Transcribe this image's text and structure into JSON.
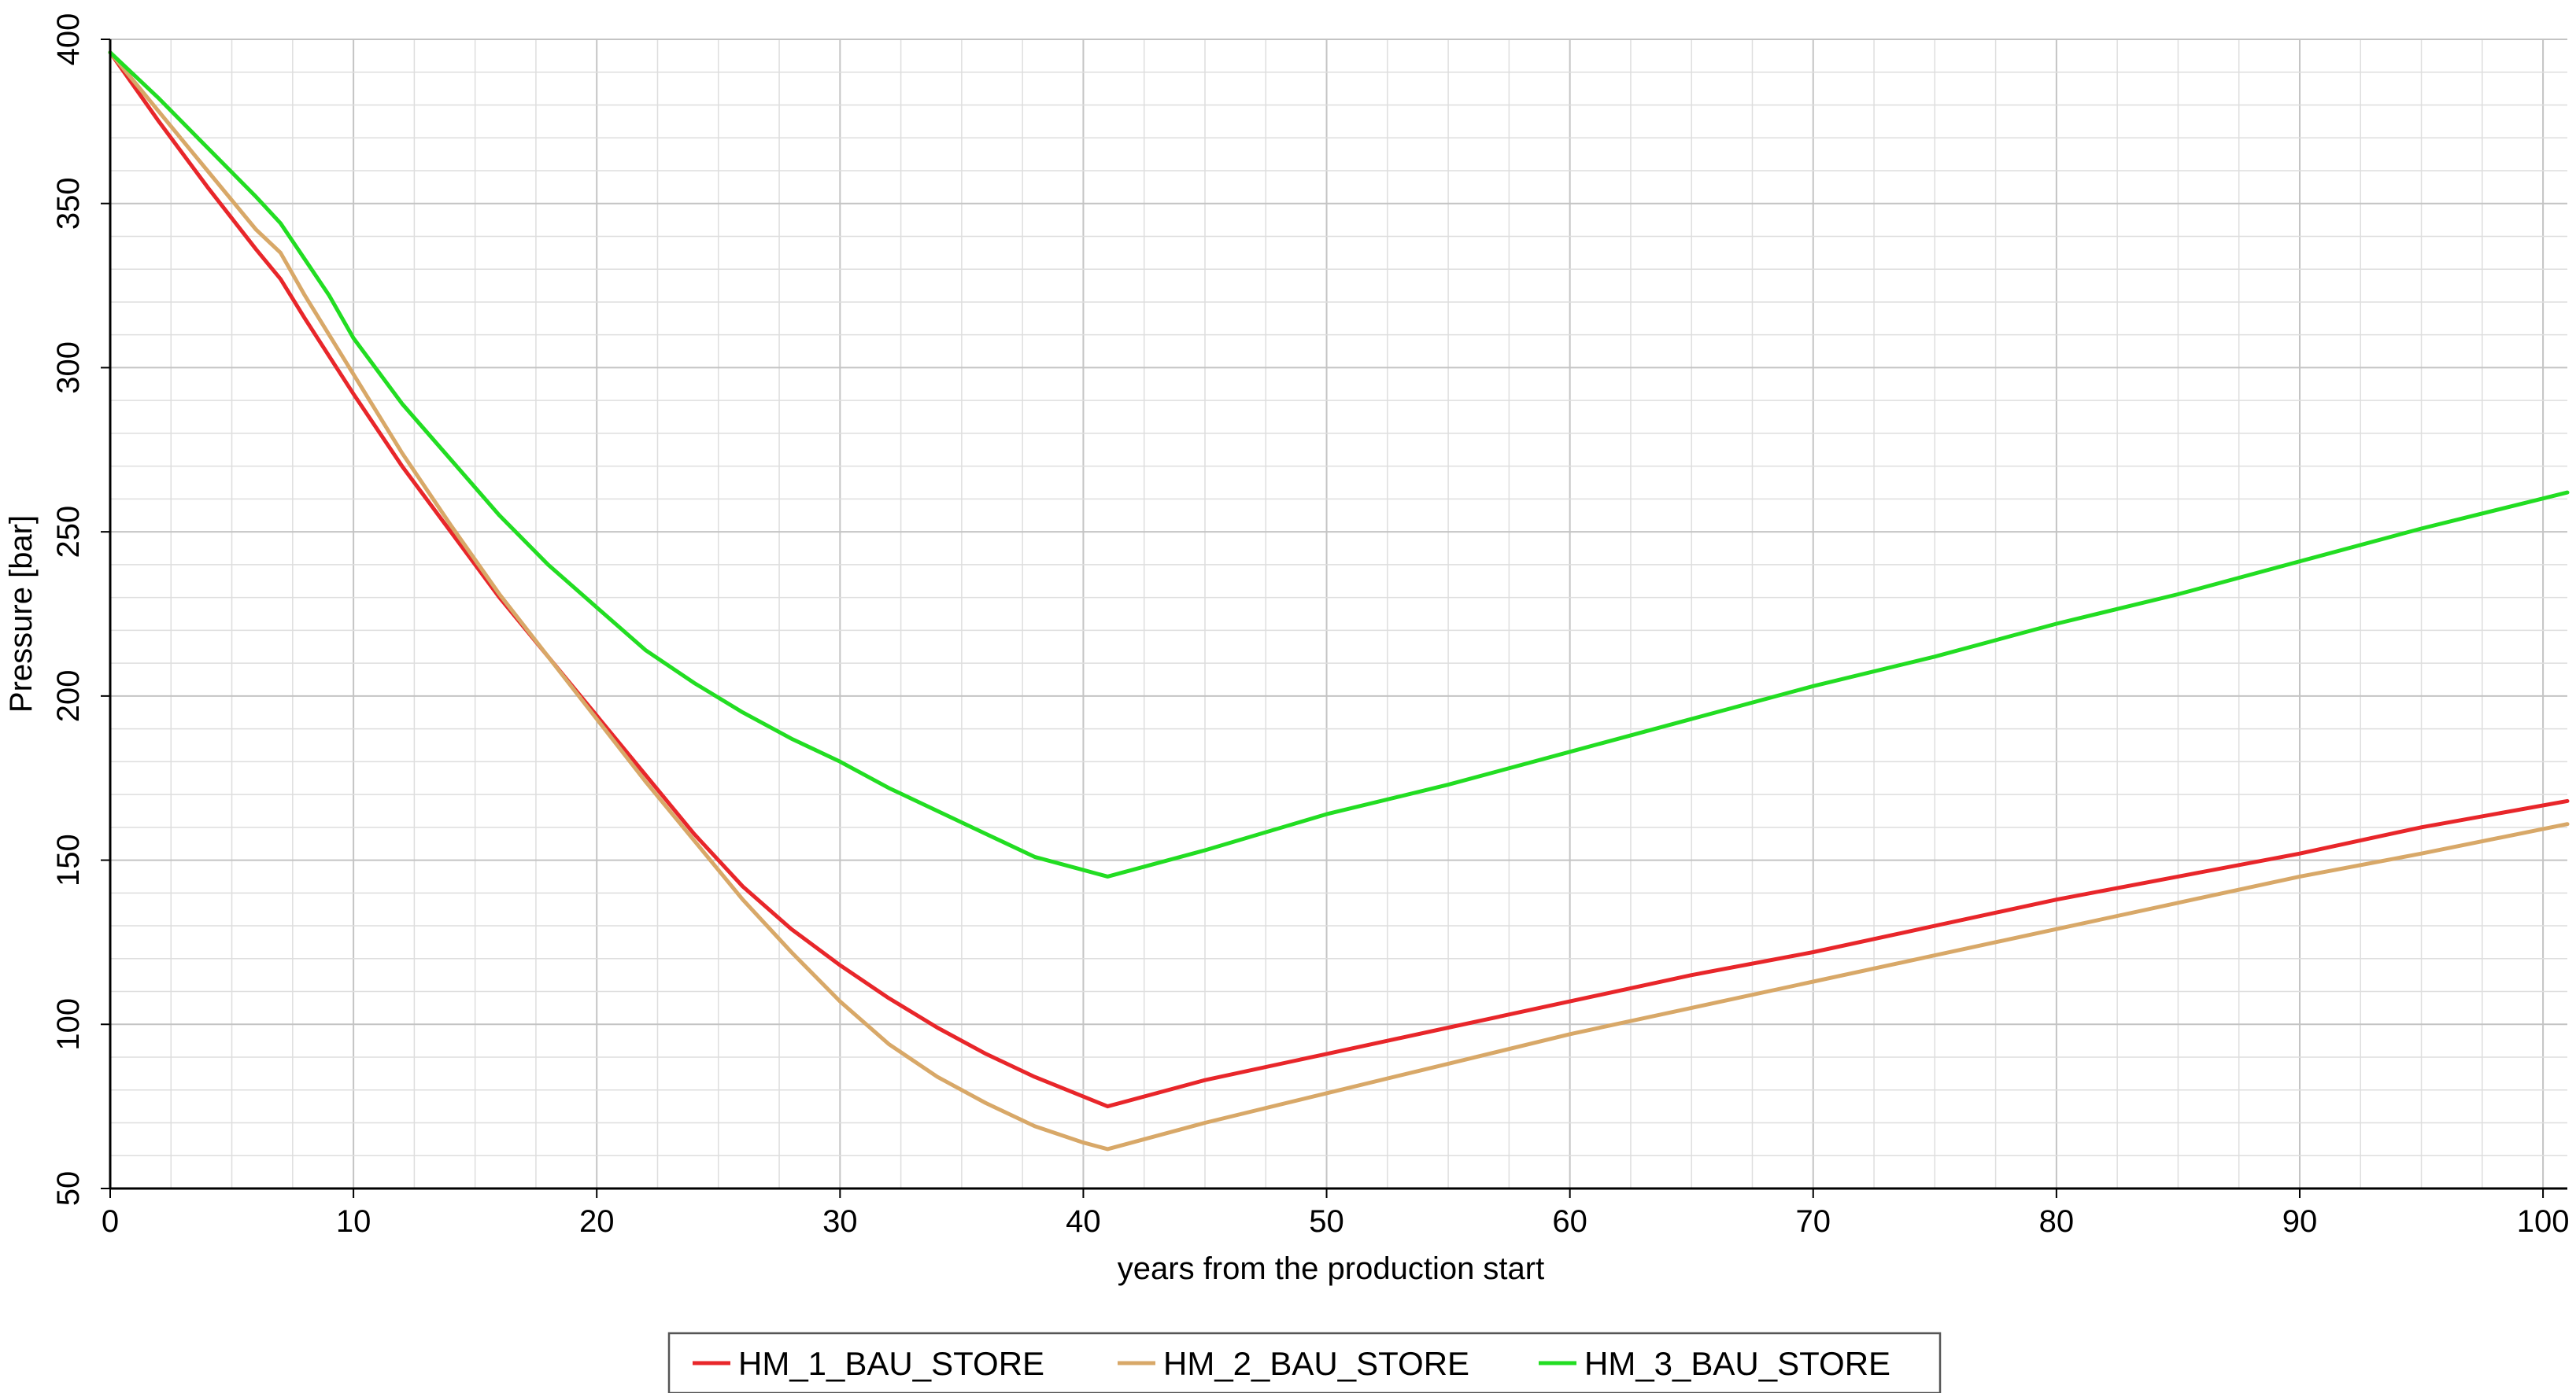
{
  "chart_data": {
    "type": "line",
    "xlabel": "years from the production start",
    "ylabel": "Pressure [bar]",
    "xlim": [
      0,
      101
    ],
    "ylim": [
      50,
      400
    ],
    "xticks": [
      0,
      10,
      20,
      30,
      40,
      50,
      60,
      70,
      80,
      90,
      100
    ],
    "yticks": [
      50,
      100,
      150,
      200,
      250,
      300,
      350,
      400
    ],
    "grid": true,
    "legend_position": "bottom-center",
    "series": [
      {
        "name": "HM_1_BAU_STORE",
        "color": "#e8262a",
        "x": [
          0,
          2,
          4,
          6,
          7,
          8,
          10,
          12,
          14,
          16,
          18,
          20,
          22,
          24,
          26,
          28,
          30,
          32,
          34,
          36,
          38,
          40,
          41,
          45,
          50,
          55,
          60,
          65,
          70,
          75,
          80,
          85,
          90,
          95,
          101
        ],
        "y": [
          396,
          375,
          355,
          336,
          327,
          315,
          292,
          270,
          250,
          230,
          212,
          194,
          176,
          158,
          142,
          129,
          118,
          108,
          99,
          91,
          84,
          78,
          75,
          83,
          91,
          99,
          107,
          115,
          122,
          130,
          138,
          145,
          152,
          160,
          168
        ]
      },
      {
        "name": "HM_2_BAU_STORE",
        "color": "#d8a868",
        "x": [
          0,
          2,
          4,
          6,
          7,
          8,
          10,
          12,
          14,
          16,
          18,
          20,
          22,
          24,
          26,
          28,
          30,
          32,
          34,
          36,
          38,
          40,
          41,
          45,
          50,
          55,
          60,
          65,
          70,
          75,
          80,
          85,
          90,
          95,
          101
        ],
        "y": [
          396,
          378,
          360,
          342,
          335,
          322,
          298,
          274,
          252,
          231,
          212,
          193,
          174,
          156,
          138,
          122,
          107,
          94,
          84,
          76,
          69,
          64,
          62,
          70,
          79,
          88,
          97,
          105,
          113,
          121,
          129,
          137,
          145,
          152,
          161
        ]
      },
      {
        "name": "HM_3_BAU_STORE",
        "color": "#22dd22",
        "x": [
          0,
          2,
          4,
          6,
          7,
          8,
          9,
          10,
          12,
          14,
          16,
          18,
          20,
          22,
          24,
          26,
          28,
          30,
          32,
          34,
          36,
          38,
          40,
          41,
          45,
          50,
          55,
          60,
          65,
          70,
          75,
          80,
          85,
          90,
          95,
          101
        ],
        "y": [
          396,
          382,
          367,
          352,
          344,
          333,
          322,
          309,
          289,
          272,
          255,
          240,
          227,
          214,
          204,
          195,
          187,
          180,
          172,
          165,
          158,
          151,
          147,
          145,
          153,
          164,
          173,
          183,
          193,
          203,
          212,
          222,
          231,
          241,
          251,
          262
        ]
      }
    ]
  }
}
